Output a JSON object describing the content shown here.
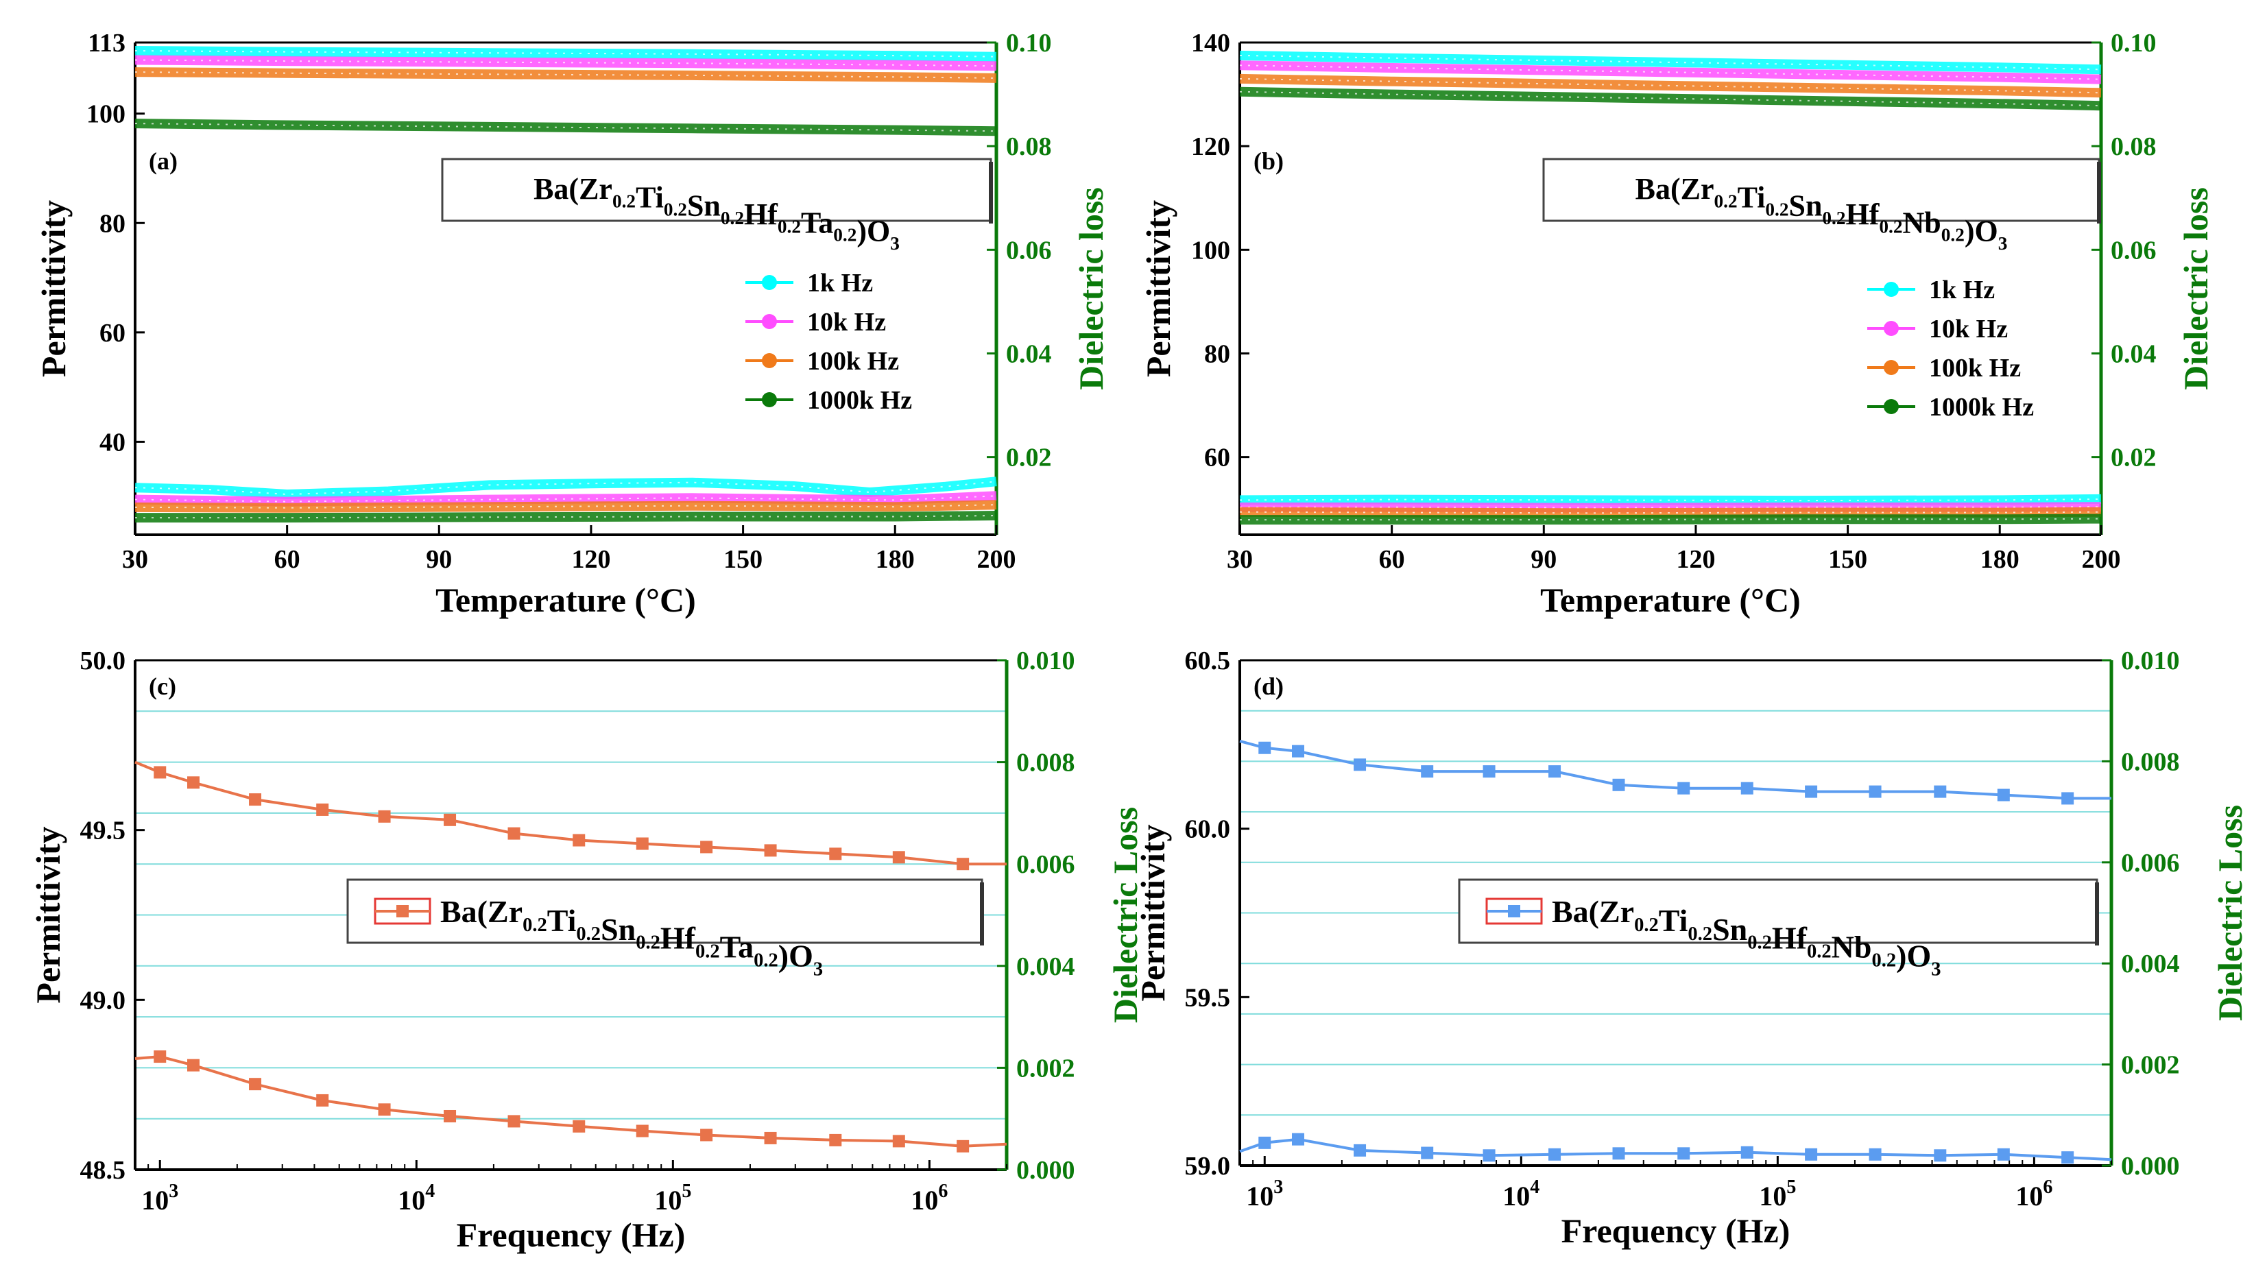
{
  "colors": {
    "left_axis": "#000000",
    "right_axis": "#0a7a0a",
    "cyan": "#00ffff",
    "magenta": "#ff4dff",
    "orange": "#f07a1a",
    "green": "#0a7a0a",
    "c_line": "#e8734a",
    "d_line": "#5b9cf0",
    "grid": "#7fdcdc"
  },
  "chart_data": [
    {
      "id": "a",
      "type": "line",
      "panel_label": "(a)",
      "formula": "Ba(Zr0.2Ti0.2Sn0.2Hf0.2Ta0.2)O3",
      "xlabel": "Temperature (°C)",
      "ylabel": "Permittivity",
      "y2label": "Dielectric loss",
      "xlim": [
        30,
        200
      ],
      "ylim": [
        23,
        113
      ],
      "y2lim": [
        0.005,
        0.1
      ],
      "xticks": [
        "30",
        "60",
        "90",
        "120",
        "150",
        "180",
        "200"
      ],
      "xtick_values": [
        30,
        60,
        90,
        120,
        150,
        180,
        200
      ],
      "yticks": [
        "40",
        "60",
        "80",
        "100",
        "113"
      ],
      "ytick_values": [
        40,
        60,
        80,
        100,
        113
      ],
      "y2ticks": [
        "0.02",
        "0.04",
        "0.06",
        "0.08",
        "0.10"
      ],
      "y2tick_values": [
        0.02,
        0.04,
        0.06,
        0.08,
        0.1
      ],
      "legend": [
        "1k Hz",
        "10k Hz",
        "100k Hz",
        "1000k Hz"
      ],
      "series": [
        {
          "name": "1k Hz",
          "axis": "left",
          "x": [
            30,
            60,
            100,
            140,
            180,
            200
          ],
          "values": [
            111.5,
            111.3,
            111.1,
            110.9,
            110.6,
            110.4
          ]
        },
        {
          "name": "10k Hz",
          "axis": "left",
          "x": [
            30,
            60,
            100,
            140,
            180,
            200
          ],
          "values": [
            109.8,
            109.6,
            109.4,
            109.2,
            108.9,
            108.7
          ]
        },
        {
          "name": "100k Hz",
          "axis": "left",
          "x": [
            30,
            60,
            100,
            140,
            180,
            200
          ],
          "values": [
            107.6,
            107.4,
            107.2,
            107.0,
            106.7,
            106.5
          ]
        },
        {
          "name": "1000k Hz",
          "axis": "left",
          "x": [
            30,
            60,
            100,
            140,
            180,
            200
          ],
          "values": [
            98.2,
            97.9,
            97.6,
            97.3,
            97.0,
            96.8
          ]
        },
        {
          "name": "1k Hz loss",
          "axis": "right",
          "x": [
            30,
            45,
            60,
            80,
            100,
            120,
            140,
            160,
            175,
            190,
            200
          ],
          "values": [
            0.0141,
            0.0137,
            0.0128,
            0.0134,
            0.0146,
            0.0149,
            0.0151,
            0.0144,
            0.0132,
            0.0143,
            0.0153
          ]
        },
        {
          "name": "10k Hz loss",
          "axis": "right",
          "x": [
            30,
            60,
            100,
            140,
            180,
            200
          ],
          "values": [
            0.0118,
            0.0114,
            0.0118,
            0.0121,
            0.0117,
            0.0125
          ]
        },
        {
          "name": "100k Hz loss",
          "axis": "right",
          "x": [
            30,
            60,
            100,
            140,
            180,
            200
          ],
          "values": [
            0.0103,
            0.0102,
            0.0104,
            0.0106,
            0.0104,
            0.0108
          ]
        },
        {
          "name": "1000k Hz loss",
          "axis": "right",
          "x": [
            30,
            60,
            100,
            140,
            180,
            200
          ],
          "values": [
            0.0083,
            0.0083,
            0.0084,
            0.0085,
            0.0085,
            0.0087
          ]
        }
      ]
    },
    {
      "id": "b",
      "type": "line",
      "panel_label": "(b)",
      "formula": "Ba(Zr0.2Ti0.2Sn0.2Hf0.2Nb0.2)O3",
      "xlabel": "Temperature (°C)",
      "ylabel": "Permittivity",
      "y2label": "Dielectric loss",
      "xlim": [
        30,
        200
      ],
      "ylim": [
        45,
        140
      ],
      "y2lim": [
        0.005,
        0.1
      ],
      "xticks": [
        "30",
        "60",
        "90",
        "120",
        "150",
        "180",
        "200"
      ],
      "xtick_values": [
        30,
        60,
        90,
        120,
        150,
        180,
        200
      ],
      "yticks": [
        "60",
        "80",
        "100",
        "120",
        "140"
      ],
      "ytick_values": [
        60,
        80,
        100,
        120,
        140
      ],
      "y2ticks": [
        "0.02",
        "0.04",
        "0.06",
        "0.08",
        "0.10"
      ],
      "y2tick_values": [
        0.02,
        0.04,
        0.06,
        0.08,
        0.1
      ],
      "legend": [
        "1k Hz",
        "10k Hz",
        "100k Hz",
        "1000k Hz"
      ],
      "series": [
        {
          "name": "1k Hz",
          "axis": "left",
          "x": [
            30,
            60,
            100,
            140,
            180,
            200
          ],
          "values": [
            137.5,
            137.0,
            136.4,
            135.8,
            135.2,
            134.8
          ]
        },
        {
          "name": "10k Hz",
          "axis": "left",
          "x": [
            30,
            60,
            100,
            140,
            180,
            200
          ],
          "values": [
            135.6,
            135.1,
            134.5,
            133.9,
            133.3,
            132.9
          ]
        },
        {
          "name": "100k Hz",
          "axis": "left",
          "x": [
            30,
            60,
            100,
            140,
            180,
            200
          ],
          "values": [
            133.0,
            132.5,
            131.9,
            131.3,
            130.7,
            130.3
          ]
        },
        {
          "name": "1000k Hz",
          "axis": "left",
          "x": [
            30,
            60,
            100,
            140,
            180,
            200
          ],
          "values": [
            130.5,
            130.0,
            129.4,
            128.8,
            128.2,
            127.8
          ]
        },
        {
          "name": "1k Hz loss",
          "axis": "right",
          "x": [
            30,
            60,
            100,
            140,
            180,
            200
          ],
          "values": [
            0.0117,
            0.0118,
            0.0117,
            0.0116,
            0.0117,
            0.0119
          ]
        },
        {
          "name": "10k Hz loss",
          "axis": "right",
          "x": [
            30,
            60,
            100,
            140,
            180,
            200
          ],
          "values": [
            0.0103,
            0.0103,
            0.0102,
            0.0103,
            0.0103,
            0.0104
          ]
        },
        {
          "name": "100k Hz loss",
          "axis": "right",
          "x": [
            30,
            60,
            100,
            140,
            180,
            200
          ],
          "values": [
            0.0094,
            0.0093,
            0.0092,
            0.0093,
            0.0093,
            0.0094
          ]
        },
        {
          "name": "1000k Hz loss",
          "axis": "right",
          "x": [
            30,
            60,
            100,
            140,
            180,
            200
          ],
          "values": [
            0.0079,
            0.0079,
            0.0079,
            0.008,
            0.008,
            0.0081
          ]
        }
      ]
    },
    {
      "id": "c",
      "type": "line",
      "panel_label": "(c)",
      "formula": "Ba(Zr0.2Ti0.2Sn0.2Hf0.2Ta0.2)O3",
      "xlabel": "Frequency (Hz)",
      "ylabel": "Permittivity",
      "y2label": "Dielectric Loss",
      "x_scale": "log",
      "xlim": [
        800,
        2000000
      ],
      "ylim": [
        48.5,
        50.0
      ],
      "y2lim": [
        0,
        0.01
      ],
      "xticks": [
        "10^3",
        "10^4",
        "10^5",
        "10^6"
      ],
      "xtick_values": [
        1000,
        10000,
        100000,
        1000000
      ],
      "yticks": [
        "48.5",
        "49.0",
        "49.5",
        "50.0"
      ],
      "ytick_values": [
        48.5,
        49.0,
        49.5,
        50.0
      ],
      "y2ticks": [
        "0.000",
        "0.002",
        "0.004",
        "0.006",
        "0.008",
        "0.010"
      ],
      "y2tick_values": [
        0,
        0.002,
        0.004,
        0.006,
        0.008,
        0.01
      ],
      "legend": [
        "Ba(Zr0.2Ti0.2Sn0.2Hf0.2Ta0.2)O3"
      ],
      "series": [
        {
          "name": "Permittivity",
          "axis": "left",
          "x": [
            800,
            1000,
            1350,
            2350,
            4300,
            7500,
            13500,
            24000,
            43000,
            76000,
            135000,
            240000,
            430000,
            760000,
            1350000,
            2000000
          ],
          "values": [
            49.7,
            49.67,
            49.64,
            49.59,
            49.56,
            49.54,
            49.53,
            49.49,
            49.47,
            49.46,
            49.45,
            49.44,
            49.43,
            49.42,
            49.4,
            49.4
          ]
        },
        {
          "name": "Dielectric Loss",
          "axis": "right",
          "x": [
            800,
            1000,
            1350,
            2350,
            4300,
            7500,
            13500,
            24000,
            43000,
            76000,
            135000,
            240000,
            430000,
            760000,
            1350000,
            2000000
          ],
          "values": [
            0.00218,
            0.00222,
            0.00205,
            0.00168,
            0.00136,
            0.00118,
            0.00105,
            0.00095,
            0.00085,
            0.00076,
            0.00068,
            0.00062,
            0.00058,
            0.00056,
            0.00046,
            0.0005
          ]
        }
      ]
    },
    {
      "id": "d",
      "type": "line",
      "panel_label": "(d)",
      "formula": "Ba(Zr0.2Ti0.2Sn0.2Hf0.2Nb0.2)O3",
      "xlabel": "Frequency (Hz)",
      "ylabel": "Permittivity",
      "y2label": "Dielectric Loss",
      "x_scale": "log",
      "xlim": [
        800,
        2000000
      ],
      "ylim": [
        59.0,
        60.5
      ],
      "y2lim": [
        0,
        0.01
      ],
      "xticks": [
        "10^3",
        "10^4",
        "10^5",
        "10^6"
      ],
      "xtick_values": [
        1000,
        10000,
        100000,
        1000000
      ],
      "yticks": [
        "59.0",
        "59.5",
        "60.0",
        "60.5"
      ],
      "ytick_values": [
        59.0,
        59.5,
        60.0,
        60.5
      ],
      "y2ticks": [
        "0.000",
        "0.002",
        "0.004",
        "0.006",
        "0.008",
        "0.010"
      ],
      "y2tick_values": [
        0,
        0.002,
        0.004,
        0.006,
        0.008,
        0.01
      ],
      "legend": [
        "Ba(Zr0.2Ti0.2Sn0.2Hf0.2Nb0.2)O3"
      ],
      "series": [
        {
          "name": "Permittivity",
          "axis": "left",
          "x": [
            800,
            1000,
            1350,
            2350,
            4300,
            7500,
            13500,
            24000,
            43000,
            76000,
            135000,
            240000,
            430000,
            760000,
            1350000,
            2000000
          ],
          "values": [
            60.26,
            60.24,
            60.23,
            60.19,
            60.17,
            60.17,
            60.17,
            60.13,
            60.12,
            60.12,
            60.11,
            60.11,
            60.11,
            60.1,
            60.09,
            60.09
          ]
        },
        {
          "name": "Dielectric Loss",
          "axis": "right",
          "x": [
            800,
            1000,
            1350,
            2350,
            4300,
            7500,
            13500,
            24000,
            43000,
            76000,
            135000,
            240000,
            430000,
            760000,
            1350000,
            2000000
          ],
          "values": [
            0.00028,
            0.00045,
            0.00052,
            0.0003,
            0.00025,
            0.0002,
            0.00022,
            0.00024,
            0.00024,
            0.00026,
            0.00022,
            0.00022,
            0.0002,
            0.00022,
            0.00016,
            0.00012
          ]
        }
      ]
    }
  ]
}
